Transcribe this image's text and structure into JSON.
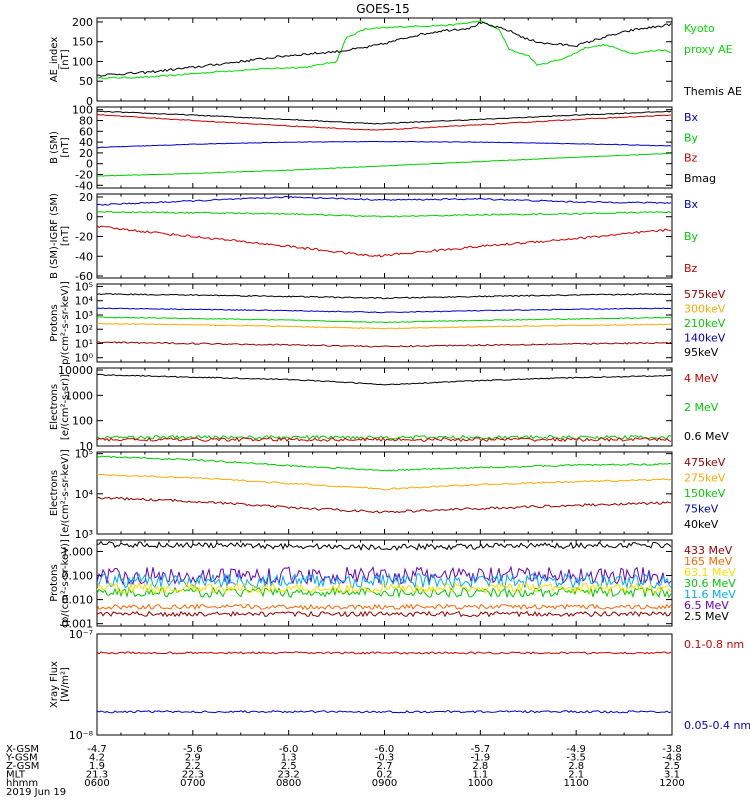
{
  "title": "GOES-15",
  "time_axis": {
    "hours": [
      6,
      7,
      8,
      9,
      10,
      11,
      12
    ],
    "rows": [
      {
        "label": "X-GSM",
        "values": [
          "-4.7",
          "-5.6",
          "-6.0",
          "-6.0",
          "-5.7",
          "-4.9",
          "-3.8"
        ]
      },
      {
        "label": "Y-GSM",
        "values": [
          "4.2",
          "2.9",
          "1.3",
          "-0.3",
          "-1.9",
          "-3.5",
          "-4.8"
        ]
      },
      {
        "label": "Z-GSM",
        "values": [
          "1.9",
          "2.2",
          "2.5",
          "2.7",
          "2.8",
          "2.8",
          "2.5"
        ]
      },
      {
        "label": "MLT",
        "values": [
          "21.3",
          "22.3",
          "23.2",
          "0.2",
          "1.1",
          "2.1",
          "3.1"
        ]
      },
      {
        "label": "hhmm",
        "values": [
          "0600",
          "0700",
          "0800",
          "0900",
          "1000",
          "1100",
          "1200"
        ]
      }
    ],
    "date": "2019 Jun 19"
  },
  "chart_data": [
    {
      "type": "line",
      "scale": "linear",
      "ylabel": [
        "AE_index",
        "[nT]"
      ],
      "ylim": [
        0,
        210
      ],
      "yticks": [
        {
          "v": 0,
          "label": "0"
        },
        {
          "v": 50,
          "label": "50"
        },
        {
          "v": 100,
          "label": "100"
        },
        {
          "v": 150,
          "label": "150"
        },
        {
          "v": 200,
          "label": "200"
        }
      ],
      "legend": [
        {
          "text": "Kyoto",
          "color": "#00dd00"
        },
        {
          "text": "proxy AE",
          "color": "#00dd00"
        },
        {
          "text": "",
          "color": "#000000"
        },
        {
          "text": "Themis AE",
          "color": "#000000"
        }
      ],
      "series": [
        {
          "name": "Kyoto proxy AE",
          "color": "#00dd00",
          "noise": 2,
          "x": [
            6.0,
            6.5,
            6.8,
            7.3,
            7.8,
            8.2,
            8.5,
            8.6,
            8.8,
            9.2,
            9.7,
            10.0,
            10.2,
            10.3,
            10.5,
            10.6,
            10.9,
            11.1,
            11.3,
            11.6,
            11.9,
            12.0
          ],
          "y": [
            58,
            60,
            65,
            75,
            82,
            86,
            100,
            160,
            182,
            188,
            192,
            202,
            180,
            130,
            115,
            90,
            110,
            135,
            142,
            120,
            130,
            122
          ]
        },
        {
          "name": "Themis AE",
          "color": "#000000",
          "noise": 3,
          "x": [
            6.0,
            6.5,
            7.0,
            7.5,
            8.0,
            8.5,
            8.8,
            9.0,
            9.3,
            9.6,
            9.9,
            10.0,
            10.3,
            10.5,
            10.7,
            11.0,
            11.3,
            11.6,
            11.9,
            12.0
          ],
          "y": [
            65,
            72,
            85,
            100,
            115,
            125,
            135,
            145,
            165,
            178,
            185,
            198,
            178,
            155,
            145,
            140,
            162,
            180,
            190,
            195
          ]
        }
      ]
    },
    {
      "type": "line",
      "scale": "linear",
      "ylabel": [
        "B (SM)",
        "[nT]"
      ],
      "ylim": [
        -45,
        105
      ],
      "yticks": [
        {
          "v": -40,
          "label": "-40"
        },
        {
          "v": -20,
          "label": "-20"
        },
        {
          "v": 0,
          "label": "0"
        },
        {
          "v": 20,
          "label": "20"
        },
        {
          "v": 40,
          "label": "40"
        },
        {
          "v": 60,
          "label": "60"
        },
        {
          "v": 80,
          "label": "80"
        },
        {
          "v": 100,
          "label": "100"
        }
      ],
      "legend": [
        {
          "text": "Bx",
          "color": "#0000cc"
        },
        {
          "text": "By",
          "color": "#00cc00"
        },
        {
          "text": "Bz",
          "color": "#cc0000"
        },
        {
          "text": "Bmag",
          "color": "#000000"
        }
      ],
      "series": [
        {
          "name": "Bmag",
          "color": "#000000",
          "noise": 0.8,
          "x": [
            6,
            7,
            8,
            8.9,
            10,
            11,
            12
          ],
          "y": [
            97,
            90,
            82,
            74,
            82,
            90,
            97
          ]
        },
        {
          "name": "Bz",
          "color": "#cc0000",
          "noise": 0.8,
          "x": [
            6,
            7,
            8,
            8.9,
            10,
            11,
            12
          ],
          "y": [
            91,
            80,
            70,
            62,
            72,
            82,
            90
          ]
        },
        {
          "name": "Bx",
          "color": "#0000cc",
          "noise": 0.5,
          "x": [
            6,
            7,
            8,
            9,
            10,
            11,
            12
          ],
          "y": [
            30,
            36,
            40,
            41,
            40,
            37,
            33
          ]
        },
        {
          "name": "By",
          "color": "#00cc00",
          "noise": 0.5,
          "x": [
            6,
            7,
            8,
            9,
            10,
            11,
            12
          ],
          "y": [
            -23,
            -18,
            -12,
            -4,
            4,
            12,
            19
          ]
        }
      ]
    },
    {
      "type": "line",
      "scale": "linear",
      "ylabel": [
        "B (SM)-IGRF (SM)",
        "[nT]"
      ],
      "ylim": [
        -62,
        23
      ],
      "yticks": [
        {
          "v": -60,
          "label": "-60"
        },
        {
          "v": -40,
          "label": "-40"
        },
        {
          "v": -20,
          "label": "-20"
        },
        {
          "v": 0,
          "label": "0"
        },
        {
          "v": 20,
          "label": "20"
        }
      ],
      "legend": [
        {
          "text": "Bx",
          "color": "#0000cc"
        },
        {
          "text": "By",
          "color": "#00cc00"
        },
        {
          "text": "Bz",
          "color": "#cc0000"
        }
      ],
      "series": [
        {
          "name": "Bx",
          "color": "#0000cc",
          "noise": 0.7,
          "x": [
            6,
            7,
            8,
            9,
            10,
            11,
            12
          ],
          "y": [
            12,
            16,
            20,
            17,
            18,
            15,
            14
          ]
        },
        {
          "name": "By",
          "color": "#00cc00",
          "noise": 0.7,
          "x": [
            6,
            7,
            8,
            9,
            10,
            11,
            12
          ],
          "y": [
            5,
            4,
            3,
            0,
            2,
            3,
            5
          ]
        },
        {
          "name": "Bz",
          "color": "#cc0000",
          "noise": 1.2,
          "x": [
            6,
            7,
            8,
            8.9,
            10,
            11,
            12
          ],
          "y": [
            -10,
            -20,
            -30,
            -40,
            -30,
            -22,
            -13
          ]
        }
      ]
    },
    {
      "type": "line",
      "scale": "log",
      "ylabel": [
        "Protons",
        "p/(cm²-s-sr-keV)]"
      ],
      "ylim": [
        0.5,
        150000
      ],
      "yticks": [
        {
          "v": 1,
          "label": "10⁰"
        },
        {
          "v": 10,
          "label": "10¹"
        },
        {
          "v": 100,
          "label": "10²"
        },
        {
          "v": 1000,
          "label": "10³"
        },
        {
          "v": 10000,
          "label": "10⁴"
        },
        {
          "v": 100000,
          "label": "10⁵"
        }
      ],
      "legend": [
        {
          "text": "575keV",
          "color": "#990000"
        },
        {
          "text": "300keV",
          "color": "#ffaa00"
        },
        {
          "text": "210keV",
          "color": "#00cc00"
        },
        {
          "text": "140keV",
          "color": "#0000cc"
        },
        {
          "text": "95keV",
          "color": "#000000"
        }
      ],
      "series": [
        {
          "name": "95keV",
          "color": "#000000",
          "noise": 0.04,
          "x": [
            6,
            9,
            12
          ],
          "y": [
            30000,
            15000,
            30000
          ]
        },
        {
          "name": "140keV",
          "color": "#0000cc",
          "noise": 0.03,
          "x": [
            6,
            9,
            12
          ],
          "y": [
            3000,
            1500,
            3000
          ]
        },
        {
          "name": "210keV",
          "color": "#00cc00",
          "noise": 0.03,
          "x": [
            6,
            9,
            12
          ],
          "y": [
            700,
            300,
            650
          ]
        },
        {
          "name": "300keV",
          "color": "#ffaa00",
          "noise": 0.03,
          "x": [
            6,
            9,
            12
          ],
          "y": [
            250,
            110,
            220
          ]
        },
        {
          "name": "575keV",
          "color": "#990000",
          "noise": 0.05,
          "x": [
            6,
            9,
            12
          ],
          "y": [
            12,
            6,
            11
          ]
        }
      ]
    },
    {
      "type": "line",
      "scale": "log",
      "ylabel": [
        "Electrons",
        "[e/(cm²-s-sr)]"
      ],
      "ylim": [
        10,
        12000
      ],
      "yticks": [
        {
          "v": 10,
          "label": "10"
        },
        {
          "v": 100,
          "label": "100"
        },
        {
          "v": 1000,
          "label": "1000"
        },
        {
          "v": 10000,
          "label": "10000"
        }
      ],
      "legend": [
        {
          "text": "4 MeV",
          "color": "#cc0000"
        },
        {
          "text": "2 MeV",
          "color": "#00cc00"
        },
        {
          "text": "0.6 MeV",
          "color": "#000000"
        }
      ],
      "series": [
        {
          "name": "0.6 MeV",
          "color": "#000000",
          "noise": 0.02,
          "x": [
            6,
            7,
            8,
            9,
            10,
            11,
            12
          ],
          "y": [
            6500,
            5200,
            4200,
            2600,
            3800,
            5000,
            6000
          ]
        },
        {
          "name": "2 MeV",
          "color": "#00cc00",
          "noise": 0.07,
          "x": [
            6,
            12
          ],
          "y": [
            22,
            22
          ]
        },
        {
          "name": "4 MeV",
          "color": "#cc0000",
          "noise": 0.07,
          "x": [
            6,
            12
          ],
          "y": [
            18,
            18
          ]
        }
      ]
    },
    {
      "type": "line",
      "scale": "log",
      "ylabel": [
        "Electrons",
        "[e/(cm²-s-sr-keV)]"
      ],
      "ylim": [
        1000,
        110000
      ],
      "yticks": [
        {
          "v": 1000,
          "label": "10³"
        },
        {
          "v": 10000,
          "label": "10⁴"
        },
        {
          "v": 100000,
          "label": "10⁵"
        }
      ],
      "legend": [
        {
          "text": "475keV",
          "color": "#990000"
        },
        {
          "text": "275keV",
          "color": "#ffaa00"
        },
        {
          "text": "150keV",
          "color": "#00cc00"
        },
        {
          "text": "75keV",
          "color": "#0000cc"
        },
        {
          "text": "40keV",
          "color": "#000000"
        }
      ],
      "series": [
        {
          "name": "150keV",
          "color": "#00cc00",
          "noise": 0.02,
          "x": [
            6,
            7,
            8,
            9,
            10,
            11,
            12
          ],
          "y": [
            85000,
            70000,
            50000,
            38000,
            45000,
            52000,
            55000
          ]
        },
        {
          "name": "275keV",
          "color": "#ffaa00",
          "noise": 0.02,
          "x": [
            6,
            7,
            8,
            9,
            10,
            11,
            12
          ],
          "y": [
            30000,
            25000,
            18000,
            13000,
            17000,
            20000,
            23000
          ]
        },
        {
          "name": "475keV",
          "color": "#990000",
          "noise": 0.03,
          "x": [
            6,
            7,
            8,
            9,
            10,
            11,
            12
          ],
          "y": [
            8000,
            6500,
            4500,
            3500,
            4300,
            5200,
            6000
          ]
        }
      ]
    },
    {
      "type": "line",
      "scale": "log",
      "ylabel": [
        "Protons",
        "[p/(cm²-s-sr-keV)]"
      ],
      "ylim": [
        0.0008,
        3
      ],
      "yticks": [
        {
          "v": 0.001,
          "label": "0.001"
        },
        {
          "v": 0.01,
          "label": "0.010"
        },
        {
          "v": 0.1,
          "label": "0.100"
        },
        {
          "v": 1,
          "label": "1.000"
        }
      ],
      "legend": [
        {
          "text": "433 MeV",
          "color": "#990000"
        },
        {
          "text": "165 MeV",
          "color": "#ff6600"
        },
        {
          "text": "63.1 MeV",
          "color": "#ffdd00"
        },
        {
          "text": "30.6 MeV",
          "color": "#00cc00"
        },
        {
          "text": "11.6 MeV",
          "color": "#00aaff"
        },
        {
          "text": "6.5 MeV",
          "color": "#6600cc"
        },
        {
          "text": "2.5 MeV",
          "color": "#000000"
        }
      ],
      "series": [
        {
          "name": "2.5 MeV",
          "color": "#000000",
          "noise": 0.12,
          "x": [
            6,
            9,
            12
          ],
          "y": [
            2.0,
            1.5,
            1.9
          ]
        },
        {
          "name": "6.5 MeV",
          "color": "#6600cc",
          "noise": 0.35,
          "x": [
            6,
            12
          ],
          "y": [
            0.1,
            0.1
          ]
        },
        {
          "name": "11.6 MeV",
          "color": "#00aaff",
          "noise": 0.3,
          "x": [
            6,
            12
          ],
          "y": [
            0.06,
            0.06
          ]
        },
        {
          "name": "30.6 MeV",
          "color": "#00cc00",
          "noise": 0.2,
          "x": [
            6,
            12
          ],
          "y": [
            0.02,
            0.02
          ]
        },
        {
          "name": "63.1 MeV",
          "color": "#ffdd00",
          "noise": 0.2,
          "x": [
            6,
            12
          ],
          "y": [
            0.03,
            0.03
          ]
        },
        {
          "name": "165 MeV",
          "color": "#ff6600",
          "noise": 0.1,
          "x": [
            6,
            12
          ],
          "y": [
            0.005,
            0.005
          ]
        },
        {
          "name": "433 MeV",
          "color": "#990000",
          "noise": 0.1,
          "x": [
            6,
            12
          ],
          "y": [
            0.0025,
            0.0025
          ]
        }
      ]
    },
    {
      "type": "line",
      "scale": "log",
      "ylabel": [
        "Xray Flux",
        "[W/m²]"
      ],
      "ylim": [
        1e-08,
        1e-07
      ],
      "yticks": [
        {
          "v": 1e-08,
          "label": "10⁻⁸"
        },
        {
          "v": 1e-07,
          "label": "10⁻⁷"
        }
      ],
      "legend": [
        {
          "text": "0.1-0.8 nm",
          "color": "#cc0000"
        },
        {
          "text": "0.05-0.4 nm",
          "color": "#0000cc"
        }
      ],
      "series": [
        {
          "name": "0.1-0.8 nm",
          "color": "#cc0000",
          "noise": 0.01,
          "x": [
            6,
            12
          ],
          "y": [
            6.5e-08,
            6.5e-08
          ]
        },
        {
          "name": "0.05-0.4 nm",
          "color": "#0000cc",
          "noise": 0.01,
          "x": [
            6,
            12
          ],
          "y": [
            1.7e-08,
            1.7e-08
          ]
        }
      ]
    }
  ]
}
